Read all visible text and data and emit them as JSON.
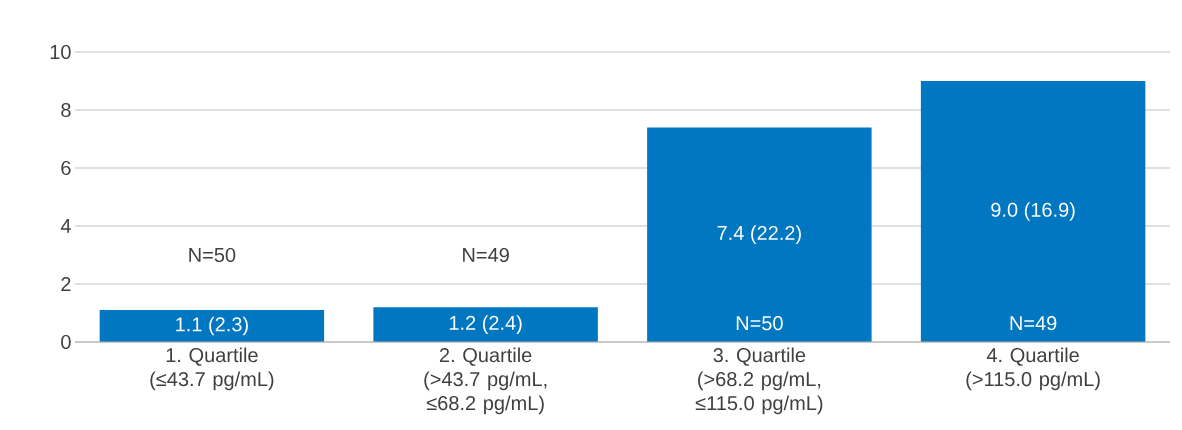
{
  "chart_data": {
    "type": "bar",
    "categories": [
      "1. Quartile (≤43.7 pg/mL)",
      "2. Quartile (>43.7 pg/mL, ≤68.2 pg/mL)",
      "3. Quartile (>68.2 pg/mL, ≤115.0 pg/mL)",
      "4. Quartile (>115.0 pg/mL)"
    ],
    "values": [
      1.1,
      1.2,
      7.4,
      9.0
    ],
    "value_labels": [
      "1.1 (2.3)",
      "1.2 (2.4)",
      "7.4 (22.2)",
      "9.0 (16.9)"
    ],
    "color": "#0077c0",
    "ylim": [
      0,
      10
    ],
    "yticks": [
      0,
      2,
      4,
      6,
      8,
      10
    ],
    "grid": "y",
    "annotations": [
      "N=50",
      "N=49",
      "N=50",
      "N=49"
    ]
  }
}
